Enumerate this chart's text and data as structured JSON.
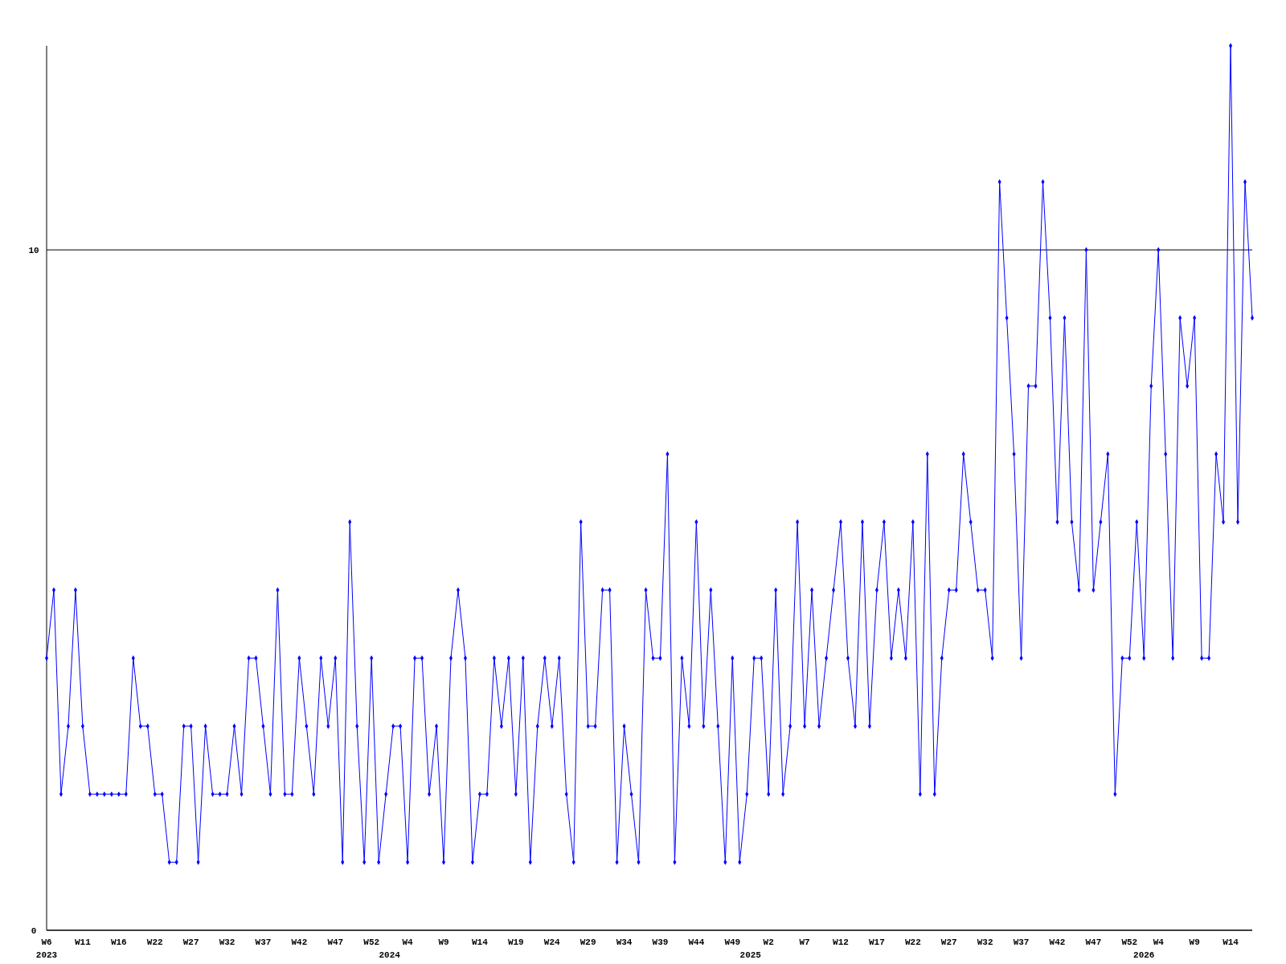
{
  "chart_data": {
    "type": "line",
    "categories": [
      "W6",
      null,
      null,
      null,
      null,
      "W11",
      null,
      null,
      null,
      null,
      "W16",
      null,
      null,
      null,
      null,
      "W22",
      null,
      null,
      null,
      null,
      "W27",
      null,
      null,
      null,
      null,
      "W32",
      null,
      null,
      null,
      null,
      "W37",
      null,
      null,
      null,
      null,
      "W42",
      null,
      null,
      null,
      null,
      "W47",
      null,
      null,
      null,
      null,
      "W52",
      null,
      null,
      null,
      null,
      "W4",
      null,
      null,
      null,
      null,
      "W9",
      null,
      null,
      null,
      null,
      "W14",
      null,
      null,
      null,
      null,
      "W19",
      null,
      null,
      null,
      null,
      "W24",
      null,
      null,
      null,
      null,
      "W29",
      null,
      null,
      null,
      null,
      "W34",
      null,
      null,
      null,
      null,
      "W39",
      null,
      null,
      null,
      null,
      "W44",
      null,
      null,
      null,
      null,
      "W49",
      null,
      null,
      null,
      null,
      "W2",
      null,
      null,
      null,
      null,
      "W7",
      null,
      null,
      null,
      null,
      "W12",
      null,
      null,
      null,
      null,
      "W17",
      null,
      null,
      null,
      null,
      "W22",
      null,
      null,
      null,
      null,
      "W27",
      null,
      null,
      null,
      null,
      "W32",
      null,
      null,
      null,
      null,
      "W37",
      null,
      null,
      null,
      null,
      "W42",
      null,
      null,
      null,
      null,
      "W47",
      null,
      null,
      null,
      null,
      "W52",
      null,
      null,
      null,
      "W4",
      null,
      null,
      null,
      null,
      "W9",
      null,
      null,
      null,
      null,
      "W14",
      null,
      null,
      null
    ],
    "series": [
      {
        "color": "#0000ff",
        "values": [
          4,
          5,
          2,
          3,
          5,
          3,
          2,
          2,
          2,
          2,
          2,
          2,
          4,
          3,
          3,
          2,
          2,
          1,
          1,
          3,
          3,
          1,
          3,
          2,
          2,
          2,
          3,
          2,
          4,
          4,
          3,
          2,
          5,
          2,
          2,
          4,
          3,
          2,
          4,
          3,
          4,
          1,
          6,
          3,
          1,
          4,
          1,
          2,
          3,
          3,
          1,
          4,
          4,
          2,
          3,
          1,
          4,
          5,
          4,
          1,
          2,
          2,
          4,
          3,
          4,
          2,
          4,
          1,
          3,
          4,
          3,
          4,
          2,
          1,
          6,
          3,
          3,
          5,
          5,
          1,
          3,
          2,
          1,
          5,
          4,
          4,
          7,
          1,
          4,
          3,
          6,
          3,
          5,
          3,
          1,
          4,
          1,
          2,
          4,
          4,
          2,
          5,
          2,
          3,
          6,
          3,
          5,
          3,
          4,
          5,
          6,
          4,
          3,
          6,
          3,
          5,
          6,
          4,
          5,
          4,
          6,
          2,
          7,
          2,
          4,
          5,
          5,
          7,
          6,
          5,
          5,
          4,
          11,
          9,
          7,
          4,
          8,
          8,
          11,
          9,
          6,
          9,
          6,
          5,
          10,
          5,
          6,
          7,
          2,
          4,
          4,
          6,
          4,
          8,
          10,
          7,
          4,
          9,
          8,
          9,
          4,
          4,
          7,
          6,
          13,
          6,
          11,
          9
        ]
      }
    ],
    "ylim": [
      0,
      13
    ],
    "yticks": [
      0,
      10
    ],
    "grid": "y",
    "marker": "diamond",
    "line_style": "solid",
    "annotations": [
      "2023",
      "2024",
      "2025",
      "2026"
    ]
  }
}
